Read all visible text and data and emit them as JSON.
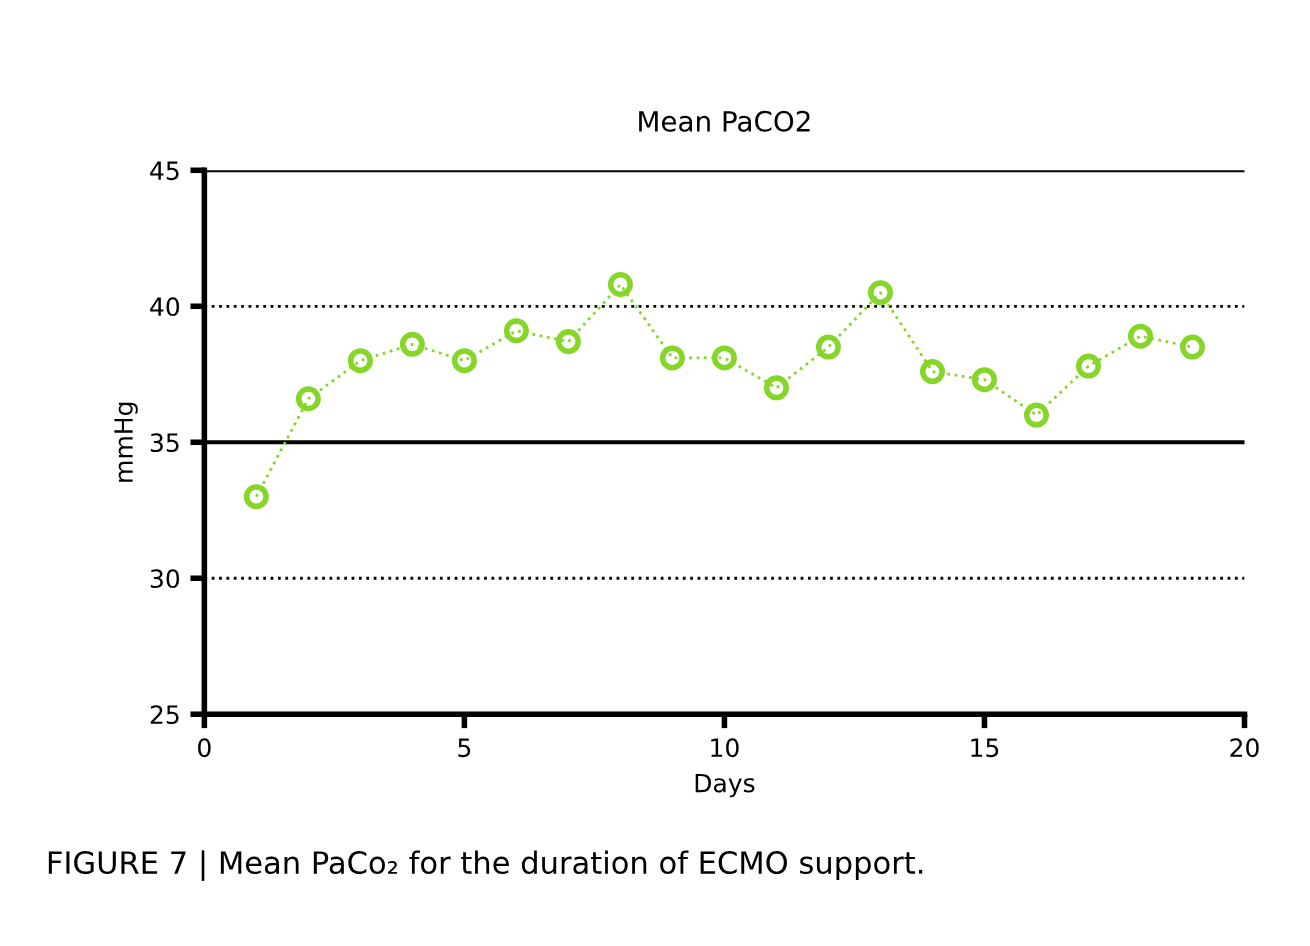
{
  "chart_data": {
    "type": "line",
    "title": "Mean PaCO2",
    "xlabel": "Days",
    "ylabel": "mmHg",
    "x": [
      1,
      2,
      3,
      4,
      5,
      6,
      7,
      8,
      9,
      10,
      11,
      12,
      13,
      14,
      15,
      16,
      17,
      18,
      19
    ],
    "series": [
      {
        "color": "#86d62a",
        "values": [
          33.0,
          36.6,
          38.0,
          38.6,
          38.0,
          39.1,
          38.7,
          40.8,
          38.1,
          38.1,
          37.0,
          38.5,
          40.5,
          37.6,
          37.3,
          36.0,
          37.8,
          38.9,
          38.5
        ]
      }
    ],
    "marker": "circle",
    "line_style": "dotted",
    "xlim": [
      0,
      20
    ],
    "xticks": [
      0,
      5,
      10,
      15,
      20
    ],
    "ylim": [
      25,
      45
    ],
    "yticks": [
      25,
      30,
      35,
      40,
      45
    ],
    "ref_lines": [
      {
        "axis": "y",
        "value": 30,
        "line_style": "dotted"
      },
      {
        "axis": "y",
        "value": 35,
        "line_style": "solid"
      },
      {
        "axis": "y",
        "value": 40,
        "line_style": "dotted"
      },
      {
        "axis": "y",
        "value": 45,
        "line_style": "solid"
      }
    ],
    "grid": false,
    "legend": false,
    "annotations": [
      "FIGURE 7 | Mean PaCo₂ for the duration of ECMO support."
    ]
  }
}
